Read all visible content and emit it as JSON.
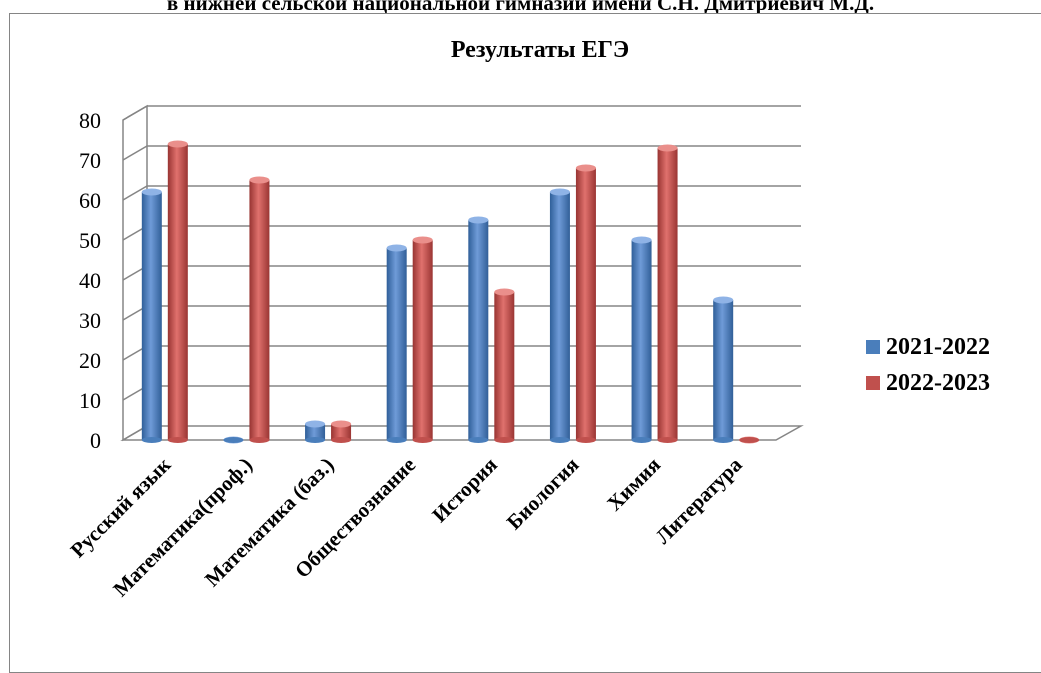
{
  "document": {
    "header_text": "в нижней сельской национальной гимназии имени С.Н. Дмитриевич М.Д."
  },
  "chart_data": {
    "type": "bar",
    "title": "Результаты ЕГЭ",
    "categories": [
      "Русский язык",
      "Математика(проф.)",
      "Математика (баз.)",
      "Обществознание",
      "История",
      "Биология",
      "Химия",
      "Литература"
    ],
    "series": [
      {
        "name": "2021-2022",
        "color": "#4a7ebb",
        "values": [
          62,
          0,
          4,
          48,
          55,
          62,
          50,
          35
        ]
      },
      {
        "name": "2022-2023",
        "color": "#c0504d",
        "values": [
          74,
          65,
          4,
          50,
          37,
          68,
          73,
          0
        ]
      }
    ],
    "xlabel": "",
    "ylabel": "",
    "ylim": [
      0,
      80
    ],
    "yticks": [
      "0",
      "10",
      "20",
      "30",
      "40",
      "50",
      "60",
      "70",
      "80"
    ],
    "grid": true,
    "legend": "right"
  }
}
